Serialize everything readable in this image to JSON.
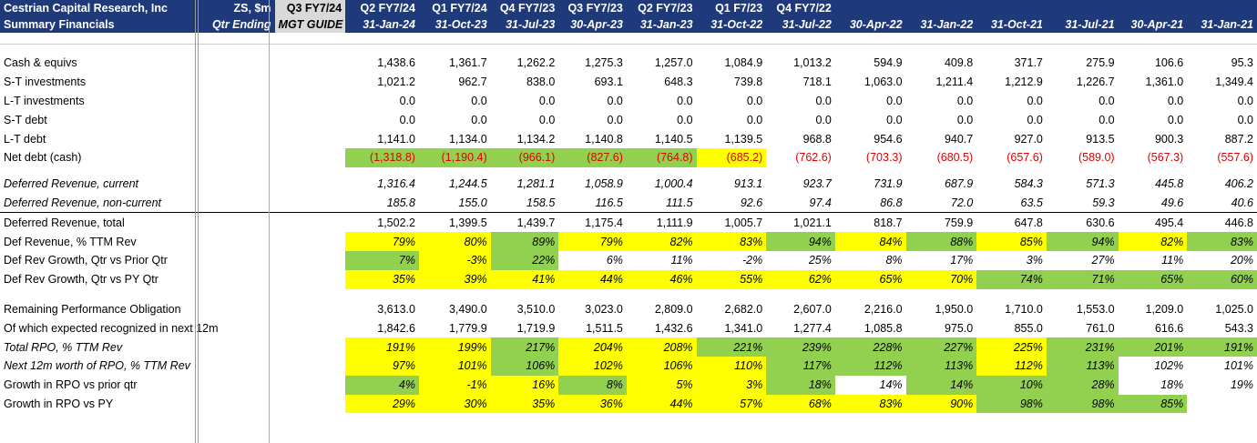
{
  "header": {
    "company": "Cestrian Capital Research, Inc",
    "subtitle": "Summary Financials",
    "units": "ZS, $m",
    "units2": "Qtr Ending",
    "guide1": "Q3 FY7/24",
    "guide2": "MGT GUIDE",
    "quarters": [
      "Q2 FY7/24",
      "Q1 FY7/24",
      "Q4 FY7/23",
      "Q3 FY7/23",
      "Q2 FY7/23",
      "Q1 F7/23",
      "Q4 FY7/22",
      "",
      "",
      "",
      "",
      "",
      ""
    ],
    "dates": [
      "31-Jan-24",
      "31-Oct-23",
      "31-Jul-23",
      "30-Apr-23",
      "31-Jan-23",
      "31-Oct-22",
      "31-Jul-22",
      "30-Apr-22",
      "31-Jan-22",
      "31-Oct-21",
      "31-Jul-21",
      "30-Apr-21",
      "31-Jan-21"
    ]
  },
  "rows": [
    {
      "label": "Cash & equivs",
      "italic": false,
      "values": [
        "1,438.6",
        "1,361.7",
        "1,262.2",
        "1,275.3",
        "1,257.0",
        "1,084.9",
        "1,013.2",
        "594.9",
        "409.8",
        "371.7",
        "275.9",
        "106.6",
        "95.3"
      ]
    },
    {
      "label": "S-T investments",
      "italic": false,
      "values": [
        "1,021.2",
        "962.7",
        "838.0",
        "693.1",
        "648.3",
        "739.8",
        "718.1",
        "1,063.0",
        "1,211.4",
        "1,212.9",
        "1,226.7",
        "1,361.0",
        "1,349.4"
      ]
    },
    {
      "label": "L-T investments",
      "italic": false,
      "values": [
        "0.0",
        "0.0",
        "0.0",
        "0.0",
        "0.0",
        "0.0",
        "0.0",
        "0.0",
        "0.0",
        "0.0",
        "0.0",
        "0.0",
        "0.0"
      ]
    },
    {
      "label": "S-T debt",
      "italic": false,
      "values": [
        "0.0",
        "0.0",
        "0.0",
        "0.0",
        "0.0",
        "0.0",
        "0.0",
        "0.0",
        "0.0",
        "0.0",
        "0.0",
        "0.0",
        "0.0"
      ]
    },
    {
      "label": "L-T debt",
      "italic": false,
      "values": [
        "1,141.0",
        "1,134.0",
        "1,134.2",
        "1,140.8",
        "1,140.5",
        "1,139.5",
        "968.8",
        "954.6",
        "940.7",
        "927.0",
        "913.5",
        "900.3",
        "887.2"
      ]
    },
    {
      "label": "Net debt (cash)",
      "italic": false,
      "red": true,
      "values": [
        "(1,318.8)",
        "(1,190.4)",
        "(966.1)",
        "(827.6)",
        "(764.8)",
        "(685.2)",
        "(762.6)",
        "(703.3)",
        "(680.5)",
        "(657.6)",
        "(589.0)",
        "(567.3)",
        "(557.6)"
      ],
      "fills": [
        "g",
        "g",
        "g",
        "g",
        "g",
        "y",
        "w",
        "w",
        "w",
        "w",
        "w",
        "w",
        "w"
      ]
    },
    {
      "gap": true
    },
    {
      "label": "Deferred Revenue, current",
      "italic": true,
      "values": [
        "1,316.4",
        "1,244.5",
        "1,281.1",
        "1,058.9",
        "1,000.4",
        "913.1",
        "923.7",
        "731.9",
        "687.9",
        "584.3",
        "571.3",
        "445.8",
        "406.2"
      ]
    },
    {
      "label": "Deferred Revenue, non-current",
      "italic": true,
      "values": [
        "185.8",
        "155.0",
        "158.5",
        "116.5",
        "111.5",
        "92.6",
        "97.4",
        "86.8",
        "72.0",
        "63.5",
        "59.3",
        "49.6",
        "40.6"
      ]
    },
    {
      "label": "Deferred Revenue, total",
      "italic": false,
      "sep": true,
      "values": [
        "1,502.2",
        "1,399.5",
        "1,439.7",
        "1,175.4",
        "1,111.9",
        "1,005.7",
        "1,021.1",
        "818.7",
        "759.9",
        "647.8",
        "630.6",
        "495.4",
        "446.8"
      ]
    },
    {
      "label": "Def Revenue, % TTM Rev",
      "italic": false,
      "vitalic": true,
      "values": [
        "79%",
        "80%",
        "89%",
        "79%",
        "82%",
        "83%",
        "94%",
        "84%",
        "88%",
        "85%",
        "94%",
        "82%",
        "83%"
      ],
      "fills": [
        "y",
        "y",
        "g",
        "y",
        "y",
        "y",
        "g",
        "y",
        "g",
        "y",
        "g",
        "y",
        "g"
      ]
    },
    {
      "label": "Def Rev Growth, Qtr vs Prior Qtr",
      "italic": false,
      "vitalic": true,
      "values": [
        "7%",
        "-3%",
        "22%",
        "6%",
        "11%",
        "-2%",
        "25%",
        "8%",
        "17%",
        "3%",
        "27%",
        "11%",
        "20%"
      ],
      "fills": [
        "g",
        "y",
        "g",
        "w",
        "w",
        "w",
        "w",
        "w",
        "w",
        "w",
        "w",
        "w",
        "w"
      ]
    },
    {
      "label": "Def Rev Growth, Qtr vs PY Qtr",
      "italic": false,
      "vitalic": true,
      "values": [
        "35%",
        "39%",
        "41%",
        "44%",
        "46%",
        "55%",
        "62%",
        "65%",
        "70%",
        "74%",
        "71%",
        "65%",
        "60%"
      ],
      "fills": [
        "y",
        "y",
        "y",
        "y",
        "y",
        "y",
        "y",
        "y",
        "y",
        "g",
        "g",
        "g",
        "g"
      ]
    },
    {
      "gap2": true
    },
    {
      "label": "Remaining Performance Obligation",
      "italic": false,
      "values": [
        "3,613.0",
        "3,490.0",
        "3,510.0",
        "3,023.0",
        "2,809.0",
        "2,682.0",
        "2,607.0",
        "2,216.0",
        "1,950.0",
        "1,710.0",
        "1,553.0",
        "1,209.0",
        "1,025.0"
      ]
    },
    {
      "label": "Of which expected recognized in next 12m",
      "italic": false,
      "values": [
        "1,842.6",
        "1,779.9",
        "1,719.9",
        "1,511.5",
        "1,432.6",
        "1,341.0",
        "1,277.4",
        "1,085.8",
        "975.0",
        "855.0",
        "761.0",
        "616.6",
        "543.3"
      ]
    },
    {
      "label": "Total RPO, % TTM Rev",
      "italic": true,
      "vitalic": true,
      "values": [
        "191%",
        "199%",
        "217%",
        "204%",
        "208%",
        "221%",
        "239%",
        "228%",
        "227%",
        "225%",
        "231%",
        "201%",
        "191%"
      ],
      "fills": [
        "y",
        "y",
        "g",
        "y",
        "y",
        "g",
        "g",
        "g",
        "g",
        "y",
        "g",
        "g",
        "g"
      ]
    },
    {
      "label": "Next 12m worth of RPO, % TTM Rev",
      "italic": true,
      "vitalic": true,
      "values": [
        "97%",
        "101%",
        "106%",
        "102%",
        "106%",
        "110%",
        "117%",
        "112%",
        "113%",
        "112%",
        "113%",
        "102%",
        "101%"
      ],
      "fills": [
        "y",
        "y",
        "g",
        "y",
        "y",
        "y",
        "g",
        "g",
        "g",
        "y",
        "g",
        "w",
        "w"
      ]
    },
    {
      "label": "Growth in RPO vs prior qtr",
      "italic": false,
      "vitalic": true,
      "values": [
        "4%",
        "-1%",
        "16%",
        "8%",
        "5%",
        "3%",
        "18%",
        "14%",
        "14%",
        "10%",
        "28%",
        "18%",
        "19%"
      ],
      "fills": [
        "g",
        "y",
        "y",
        "g",
        "y",
        "y",
        "g",
        "w",
        "g",
        "g",
        "g",
        "w",
        "w"
      ]
    },
    {
      "label": "Growth in RPO vs PY",
      "italic": false,
      "vitalic": true,
      "values": [
        "29%",
        "30%",
        "35%",
        "36%",
        "44%",
        "57%",
        "68%",
        "83%",
        "90%",
        "98%",
        "98%",
        "85%",
        ""
      ],
      "fills": [
        "y",
        "y",
        "y",
        "y",
        "y",
        "y",
        "y",
        "y",
        "y",
        "g",
        "g",
        "g",
        "w"
      ]
    }
  ]
}
